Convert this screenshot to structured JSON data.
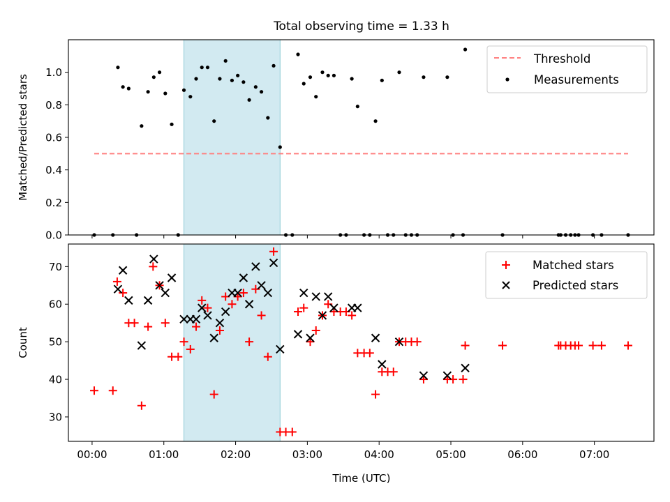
{
  "chart_data": [
    {
      "type": "scatter",
      "title": "Total observing time = 1.33 h",
      "ylabel": "Matched/Predicted stars",
      "xlabel": "",
      "xlim": [
        -0.33,
        7.83
      ],
      "ylim": [
        0,
        1.2
      ],
      "yticks": [
        0.0,
        0.2,
        0.4,
        0.6,
        0.8,
        1.0
      ],
      "ytick_labels": [
        "0.0",
        "0.2",
        "0.4",
        "0.6",
        "0.8",
        "1.0"
      ],
      "xticks": [
        0,
        1,
        2,
        3,
        4,
        5,
        6,
        7
      ],
      "xtick_labels": [],
      "shaded_span": [
        1.28,
        2.62
      ],
      "legend_position": "upper right",
      "threshold": {
        "name": "Threshold",
        "color": "#ff8080",
        "x": [
          0.03,
          7.47
        ],
        "y": 0.5
      },
      "series": [
        {
          "name": "Measurements",
          "color": "#000000",
          "x": [
            0.03,
            0.29,
            0.36,
            0.43,
            0.51,
            0.62,
            0.69,
            0.78,
            0.86,
            0.94,
            1.02,
            1.11,
            1.2,
            1.28,
            1.37,
            1.45,
            1.53,
            1.61,
            1.7,
            1.78,
            1.86,
            1.95,
            2.03,
            2.11,
            2.19,
            2.28,
            2.36,
            2.45,
            2.53,
            2.62,
            2.7,
            2.79,
            2.87,
            2.95,
            3.04,
            3.12,
            3.21,
            3.29,
            3.37,
            3.46,
            3.54,
            3.62,
            3.7,
            3.79,
            3.87,
            3.95,
            4.04,
            4.12,
            4.2,
            4.28,
            4.37,
            4.45,
            4.53,
            4.62,
            4.95,
            5.03,
            5.17,
            5.2,
            5.72,
            6.5,
            6.53,
            6.6,
            6.67,
            6.73,
            6.78,
            6.98,
            7.1,
            7.47
          ],
          "y": [
            0.0,
            0.0,
            1.03,
            0.91,
            0.9,
            0.0,
            0.67,
            0.88,
            0.97,
            1.0,
            0.87,
            0.68,
            0.0,
            0.89,
            0.85,
            0.96,
            1.03,
            1.03,
            0.7,
            0.96,
            1.07,
            0.95,
            0.98,
            0.94,
            0.83,
            0.91,
            0.88,
            0.72,
            1.04,
            0.54,
            0.0,
            0.0,
            1.11,
            0.93,
            0.97,
            0.85,
            1.0,
            0.98,
            0.98,
            0.0,
            0.0,
            0.96,
            0.79,
            0.0,
            0.0,
            0.7,
            0.95,
            0.0,
            0.0,
            1.0,
            0.0,
            0.0,
            0.0,
            0.97,
            0.97,
            0.0,
            0.0,
            1.14,
            0.0,
            0.0,
            0.0,
            0.0,
            0.0,
            0.0,
            0.0,
            0.0,
            0.0,
            0.0
          ]
        }
      ]
    },
    {
      "type": "scatter",
      "title": "",
      "ylabel": "Count",
      "xlabel": "Time (UTC)",
      "xlim": [
        -0.33,
        7.83
      ],
      "ylim": [
        23.5,
        76
      ],
      "yticks": [
        30,
        40,
        50,
        60,
        70
      ],
      "ytick_labels": [
        "30",
        "40",
        "50",
        "60",
        "70"
      ],
      "xticks": [
        0,
        1,
        2,
        3,
        4,
        5,
        6,
        7
      ],
      "xtick_labels": [
        "00:00",
        "01:00",
        "02:00",
        "03:00",
        "04:00",
        "05:00",
        "06:00",
        "07:00"
      ],
      "shaded_span": [
        1.28,
        2.62
      ],
      "legend_position": "upper right",
      "series": [
        {
          "name": "Matched stars",
          "marker": "plus",
          "color": "#ff0000",
          "x": [
            0.03,
            0.29,
            0.35,
            0.43,
            0.51,
            0.59,
            0.69,
            0.78,
            0.85,
            0.94,
            1.02,
            1.11,
            1.2,
            1.28,
            1.37,
            1.45,
            1.53,
            1.61,
            1.7,
            1.78,
            1.86,
            1.95,
            2.03,
            2.11,
            2.19,
            2.28,
            2.36,
            2.45,
            2.53,
            2.62,
            2.7,
            2.79,
            2.87,
            2.95,
            3.04,
            3.12,
            3.21,
            3.29,
            3.37,
            3.46,
            3.54,
            3.62,
            3.7,
            3.79,
            3.87,
            3.95,
            4.04,
            4.12,
            4.2,
            4.28,
            4.37,
            4.45,
            4.53,
            4.62,
            4.95,
            5.03,
            5.17,
            5.2,
            5.72,
            6.5,
            6.53,
            6.6,
            6.67,
            6.73,
            6.78,
            6.98,
            7.1,
            7.47
          ],
          "y": [
            37,
            37,
            66,
            63,
            55,
            55,
            33,
            54,
            70,
            65,
            55,
            46,
            46,
            50,
            48,
            54,
            61,
            59,
            36,
            53,
            62,
            60,
            62,
            63,
            50,
            64,
            57,
            46,
            74,
            26,
            26,
            26,
            58,
            59,
            50,
            53,
            57,
            60,
            58,
            58,
            58,
            57,
            47,
            47,
            47,
            36,
            42,
            42,
            42,
            50,
            50,
            50,
            50,
            40,
            40,
            40,
            40,
            49,
            49,
            49,
            49,
            49,
            49,
            49,
            49,
            49,
            49,
            49
          ]
        },
        {
          "name": "Predicted stars",
          "marker": "x",
          "color": "#000000",
          "x": [
            0.36,
            0.43,
            0.51,
            0.69,
            0.78,
            0.86,
            0.94,
            1.02,
            1.11,
            1.28,
            1.37,
            1.45,
            1.53,
            1.61,
            1.7,
            1.78,
            1.86,
            1.95,
            2.03,
            2.11,
            2.19,
            2.28,
            2.36,
            2.45,
            2.53,
            2.62,
            2.87,
            2.95,
            3.04,
            3.12,
            3.21,
            3.29,
            3.37,
            3.62,
            3.7,
            3.95,
            4.04,
            4.28,
            4.62,
            4.95,
            5.2
          ],
          "y": [
            64,
            69,
            61,
            49,
            61,
            72,
            65,
            63,
            67,
            56,
            56,
            56,
            59,
            57,
            51,
            55,
            58,
            63,
            63,
            67,
            60,
            70,
            65,
            63,
            71,
            48,
            52,
            63,
            51,
            62,
            57,
            62,
            59,
            59,
            59,
            51,
            44,
            50,
            41,
            41,
            43
          ]
        }
      ]
    }
  ]
}
